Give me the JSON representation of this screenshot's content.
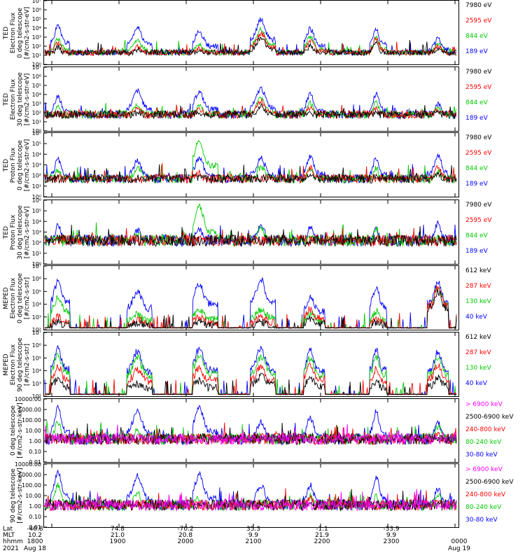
{
  "figure": {
    "panels": [
      {
        "ylabel": [
          "TED",
          "Electron Flux",
          "0 deg telescope",
          "[#/cm2-s-str-eV]"
        ],
        "ticks": [
          "10⁰",
          "10¹",
          "10²",
          "10³",
          "10⁴",
          "10⁵",
          "10⁶",
          "10⁷"
        ],
        "legend": [
          {
            "label": "7980 eV",
            "color": "#000000"
          },
          {
            "label": "2595 eV",
            "color": "#ff0000"
          },
          {
            "label": "844 eV",
            "color": "#00cc00"
          },
          {
            "label": "189 eV",
            "color": "#0000ff"
          }
        ]
      },
      {
        "ylabel": [
          "TED",
          "Electron Flux",
          "30 deg telescope",
          "[#/cm2-s-str-eV]"
        ],
        "ticks": [
          "10⁰",
          "10¹",
          "10²",
          "10³",
          "10⁴",
          "10⁵",
          "10⁶",
          "10⁷"
        ],
        "legend": [
          {
            "label": "7980 eV",
            "color": "#000000"
          },
          {
            "label": "2595 eV",
            "color": "#ff0000"
          },
          {
            "label": "844 eV",
            "color": "#00cc00"
          },
          {
            "label": "189 eV",
            "color": "#0000ff"
          }
        ]
      },
      {
        "ylabel": [
          "TED",
          "Proton Flux",
          "0 deg telescope",
          "[#/cm2-s-str-eV]"
        ],
        "ticks": [
          "10⁰",
          "10¹",
          "10²",
          "10³",
          "10⁴",
          "10⁵",
          "10⁶"
        ],
        "legend": [
          {
            "label": "7980 eV",
            "color": "#000000"
          },
          {
            "label": "2595 eV",
            "color": "#ff0000"
          },
          {
            "label": "844 eV",
            "color": "#00cc00"
          },
          {
            "label": "189 eV",
            "color": "#0000ff"
          }
        ]
      },
      {
        "ylabel": [
          "TED",
          "Proton Flux",
          "30 deg telescope",
          "[#/cm2-s-str-eV]"
        ],
        "ticks": [
          "10⁰",
          "10¹",
          "10²",
          "10³",
          "10⁴",
          "10⁵",
          "10⁶"
        ],
        "legend": [
          {
            "label": "7980 eV",
            "color": "#000000"
          },
          {
            "label": "2595 eV",
            "color": "#ff0000"
          },
          {
            "label": "844 eV",
            "color": "#00cc00"
          },
          {
            "label": "189 eV",
            "color": "#0000ff"
          }
        ]
      },
      {
        "ylabel": [
          "MEPED",
          "Electron Flux",
          "0 deg telescope",
          "[#/cm2-s-str]"
        ],
        "ticks": [
          "10²",
          "10³",
          "10⁴",
          "10⁵",
          "10⁶",
          "10⁷"
        ],
        "legend": [
          {
            "label": "612 keV",
            "color": "#000000"
          },
          {
            "label": "287 keV",
            "color": "#ff0000"
          },
          {
            "label": "130 keV",
            "color": "#00cc00"
          },
          {
            "label": "40 keV",
            "color": "#0000ff"
          }
        ]
      },
      {
        "ylabel": [
          "MEPED",
          "Electron Flux",
          "90 deg telescope",
          "[#/cm2-s-str]"
        ],
        "ticks": [
          "10²",
          "10³",
          "10⁴",
          "10⁵",
          "10⁶",
          "10⁷"
        ],
        "legend": [
          {
            "label": "612 keV",
            "color": "#000000"
          },
          {
            "label": "287 keV",
            "color": "#ff0000"
          },
          {
            "label": "130 keV",
            "color": "#00cc00"
          },
          {
            "label": "40 keV",
            "color": "#0000ff"
          }
        ]
      },
      {
        "ylabel": [
          "0 deg telescope",
          "[#/cm2-s-str-keV]"
        ],
        "ticks": [
          "0.01",
          "0.10",
          "1.00",
          "10.00",
          "100.00",
          "1000.00",
          "10000.00"
        ],
        "legend": [
          {
            "label": "> 6900 keV",
            "color": "#ff00ff"
          },
          {
            "label": "2500-6900 keV",
            "color": "#000000"
          },
          {
            "label": "240-800 keV",
            "color": "#ff0000"
          },
          {
            "label": "80-240 keV",
            "color": "#00cc00"
          },
          {
            "label": "30-80 keV",
            "color": "#0000ff"
          }
        ]
      },
      {
        "ylabel": [
          "90 deg telescope",
          "[#/cm2-s-str-keV]"
        ],
        "ticks": [
          "0.01",
          "0.10",
          "1.00",
          "10.00",
          "100.00",
          "1000.00",
          "10000.00"
        ],
        "legend": [
          {
            "label": "> 6900 keV",
            "color": "#ff00ff"
          },
          {
            "label": "2500-6900 keV",
            "color": "#000000"
          },
          {
            "label": "240-800 keV",
            "color": "#ff0000"
          },
          {
            "label": "80-240 keV",
            "color": "#00cc00"
          },
          {
            "label": "30-80 keV",
            "color": "#0000ff"
          }
        ]
      }
    ],
    "footer": {
      "row_labels": [
        "Lat",
        "MLT",
        "hhmm",
        "2021"
      ],
      "lat": [
        "-40.8",
        "74.8",
        "-70.2",
        "35.3",
        "-1.1",
        "-33.9"
      ],
      "mlt": [
        "10.2",
        "21.0",
        "20.8",
        "9.9",
        "21.9",
        "9.9"
      ],
      "hhmm": [
        "1800",
        "1900",
        "2000",
        "2100",
        "2200",
        "2300",
        "0000"
      ],
      "dates": [
        "Aug 18",
        "Aug 19"
      ]
    }
  },
  "chart_data": {
    "type": "line",
    "title": "",
    "xlabel": "",
    "x": [
      "1800",
      "1900",
      "2000",
      "2100",
      "2200",
      "2300",
      "0000"
    ],
    "grid": false,
    "scale": "log",
    "passes": [
      {
        "start": 0.015,
        "end": 0.06,
        "peak": 0.032
      },
      {
        "start": 0.2,
        "end": 0.26,
        "peak": 0.225
      },
      {
        "start": 0.36,
        "end": 0.42,
        "peak": 0.375
      },
      {
        "start": 0.5,
        "end": 0.56,
        "peak": 0.525
      },
      {
        "start": 0.63,
        "end": 0.68,
        "peak": 0.645
      },
      {
        "start": 0.79,
        "end": 0.83,
        "peak": 0.805
      },
      {
        "start": 0.93,
        "end": 0.98,
        "peak": 0.955
      }
    ],
    "panels": [
      {
        "ylim": [
          1,
          10000000.0
        ],
        "baseline_decades": 1.3,
        "series": [
          {
            "color": "#0000ff",
            "peaks": [
              4.2,
              4.0,
              3.6,
              4.9,
              3.9,
              3.9,
              2.8
            ]
          },
          {
            "color": "#00cc00",
            "peaks": [
              2.8,
              2.6,
              2.2,
              3.8,
              3.0,
              3.0,
              2.2
            ]
          },
          {
            "color": "#ff0000",
            "peaks": [
              2.3,
              2.0,
              1.8,
              3.4,
              2.6,
              2.8,
              2.0
            ]
          },
          {
            "color": "#000000",
            "peaks": [
              1.9,
              1.6,
              1.5,
              2.9,
              2.0,
              2.3,
              1.7
            ]
          }
        ]
      },
      {
        "ylim": [
          1,
          10000000.0
        ],
        "baseline_decades": 1.8,
        "series": [
          {
            "color": "#0000ff",
            "peaks": [
              3.8,
              4.4,
              4.3,
              4.7,
              4.0,
              4.1,
              3.0
            ]
          },
          {
            "color": "#00cc00",
            "peaks": [
              2.6,
              2.8,
              2.8,
              3.6,
              3.0,
              3.1,
              2.6
            ]
          },
          {
            "color": "#ff0000",
            "peaks": [
              2.0,
              2.4,
              2.4,
              3.3,
              2.6,
              2.6,
              2.4
            ]
          },
          {
            "color": "#000000",
            "peaks": [
              1.4,
              1.8,
              1.8,
              2.8,
              2.0,
              2.0,
              2.2
            ]
          }
        ]
      },
      {
        "ylim": [
          1,
          1000000.0
        ],
        "baseline_decades": 1.7,
        "series": [
          {
            "color": "#0000ff",
            "peaks": [
              3.5,
              3.4,
              3.6,
              3.6,
              3.8,
              3.7,
              3.9
            ]
          },
          {
            "color": "#00cc00",
            "peaks": [
              2.5,
              2.7,
              5.3,
              2.8,
              2.6,
              2.7,
              2.5
            ]
          },
          {
            "color": "#ff0000",
            "peaks": [
              1.5,
              1.6,
              2.2,
              1.6,
              2.7,
              1.6,
              2.8
            ]
          },
          {
            "color": "#000000",
            "peaks": [
              1.0,
              1.0,
              1.8,
              1.0,
              2.0,
              1.0,
              2.2
            ]
          }
        ]
      },
      {
        "ylim": [
          1,
          1000000.0
        ],
        "baseline_decades": 2.2,
        "series": [
          {
            "color": "#0000ff",
            "peaks": [
              3.6,
              3.2,
              3.3,
              3.6,
              3.4,
              3.3,
              3.8
            ]
          },
          {
            "color": "#00cc00",
            "peaks": [
              2.4,
              3.0,
              5.4,
              3.3,
              2.6,
              3.4,
              2.6
            ]
          },
          {
            "color": "#ff0000",
            "peaks": [
              0.5,
              0.5,
              0.6,
              0.5,
              0.5,
              0.5,
              0.8
            ]
          },
          {
            "color": "#000000",
            "peaks": [
              0.2,
              0.2,
              0.3,
              0.2,
              0.2,
              0.2,
              0.4
            ]
          }
        ]
      },
      {
        "ylim": [
          100,
          10000000.0
        ],
        "baseline_decades": 0.15,
        "series": [
          {
            "color": "#0000ff",
            "peaks": [
              3.9,
              3.0,
              3.6,
              3.9,
              2.6,
              3.4,
              3.7
            ]
          },
          {
            "color": "#00cc00",
            "peaks": [
              2.6,
              1.2,
              1.5,
              1.6,
              1.3,
              1.4,
              3.4
            ]
          },
          {
            "color": "#ff0000",
            "peaks": [
              1.0,
              0.8,
              1.0,
              1.0,
              1.6,
              0.9,
              3.3
            ]
          },
          {
            "color": "#000000",
            "peaks": [
              0.6,
              0.5,
              0.6,
              0.6,
              0.8,
              0.6,
              3.0
            ]
          }
        ]
      },
      {
        "ylim": [
          100,
          10000000.0
        ],
        "baseline_decades": 0.15,
        "series": [
          {
            "color": "#0000ff",
            "peaks": [
              3.8,
              3.5,
              3.7,
              3.7,
              3.6,
              3.7,
              3.5
            ]
          },
          {
            "color": "#00cc00",
            "peaks": [
              3.3,
              3.0,
              3.2,
              3.1,
              3.0,
              3.1,
              3.0
            ]
          },
          {
            "color": "#ff0000",
            "peaks": [
              2.4,
              2.1,
              2.2,
              2.3,
              2.4,
              2.1,
              2.4
            ]
          },
          {
            "color": "#000000",
            "peaks": [
              1.4,
              1.0,
              1.2,
              1.6,
              1.4,
              1.2,
              1.4
            ]
          }
        ]
      },
      {
        "ylim": [
          0.01,
          10000
        ],
        "baseline_decades": 2.2,
        "series": [
          {
            "color": "#0000ff",
            "peaks": [
              5.2,
              5.0,
              5.2,
              3.8,
              4.2,
              4.8,
              3.7
            ]
          },
          {
            "color": "#00cc00",
            "peaks": [
              3.8,
              3.0,
              2.5,
              2.4,
              2.4,
              2.6,
              3.4
            ]
          },
          {
            "color": "#ff0000",
            "peaks": [
              0.8,
              0.8,
              0.9,
              0.8,
              2.1,
              0.8,
              2.7
            ]
          },
          {
            "color": "#000000",
            "peaks": [
              0.3,
              0.3,
              0.4,
              0.4,
              1.8,
              0.4,
              2.2
            ]
          },
          {
            "color": "#ff00ff",
            "peaks": [
              0.1,
              0.1,
              0.1,
              0.1,
              0.8,
              0.1,
              0.8
            ]
          }
        ]
      },
      {
        "ylim": [
          0.01,
          10000
        ],
        "baseline_decades": 2.1,
        "series": [
          {
            "color": "#0000ff",
            "peaks": [
              5.3,
              4.9,
              5.0,
              4.0,
              4.0,
              4.8,
              3.6
            ]
          },
          {
            "color": "#00cc00",
            "peaks": [
              4.0,
              3.2,
              2.8,
              2.5,
              3.0,
              2.9,
              3.2
            ]
          },
          {
            "color": "#ff0000",
            "peaks": [
              0.9,
              1.1,
              1.2,
              1.0,
              2.8,
              1.1,
              2.6
            ]
          },
          {
            "color": "#000000",
            "peaks": [
              0.5,
              0.4,
              0.6,
              0.5,
              2.2,
              0.6,
              2.0
            ]
          },
          {
            "color": "#ff00ff",
            "peaks": [
              0.1,
              0.1,
              0.1,
              0.1,
              1.2,
              0.1,
              0.9
            ]
          }
        ]
      }
    ]
  }
}
